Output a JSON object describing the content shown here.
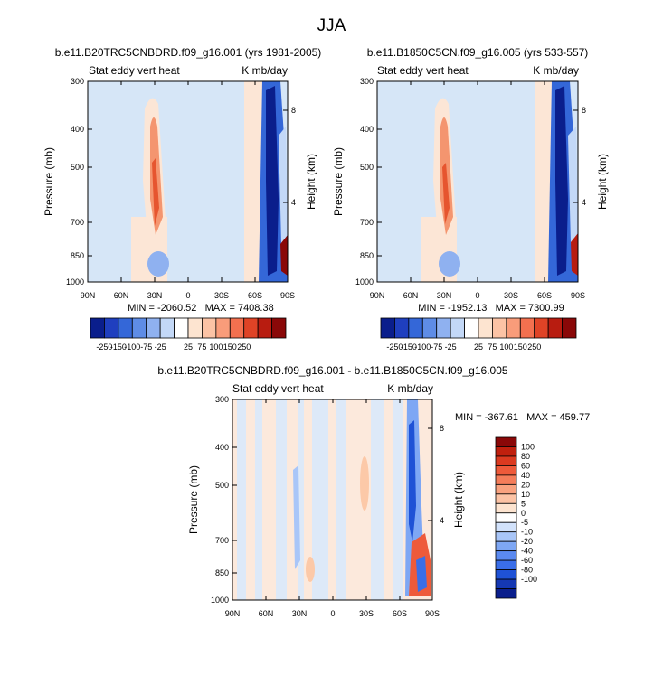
{
  "page_title": "JJA",
  "colors": {
    "bg_blue": "#d6e6f7",
    "bg_orange": "#fce6d6"
  },
  "main_palette": [
    "#0a1e8c",
    "#1f3fbf",
    "#3467d8",
    "#5e8ce6",
    "#8fb1f0",
    "#c3d8f7",
    "#ffffff",
    "#fde4d0",
    "#fcc3a5",
    "#f99c7a",
    "#f3704f",
    "#df4326",
    "#b81c10",
    "#8a0808"
  ],
  "diff_palette": [
    "#0a1e8c",
    "#1538b3",
    "#1f52d6",
    "#3a6ee8",
    "#5b8af0",
    "#7ea7f4",
    "#a9c6f8",
    "#d2e2fb",
    "#ffffff",
    "#fde4d0",
    "#fcc3a5",
    "#f9a27f",
    "#f57d5a",
    "#ee5a3a",
    "#db3a20",
    "#c0200e",
    "#8a0808"
  ],
  "chart_data": [
    {
      "type": "heatmap",
      "title": "b.e11.B20TRC5CNBDRD.f09_g16.001 (yrs 1981-2005)",
      "left_string": "Stat eddy vert heat",
      "right_string": "K mb/day",
      "ylabel": "Pressure (mb)",
      "ylabel_right": "Height (km)",
      "x_ticks": [
        "90N",
        "60N",
        "30N",
        "0",
        "30S",
        "60S",
        "90S"
      ],
      "y_ticks": [
        "300",
        "400",
        "500",
        "700",
        "850",
        "1000"
      ],
      "y_ticks_right": [
        "8",
        "4"
      ],
      "ylim": [
        1000,
        300
      ],
      "min_max": "MIN = -2060.52   MAX = 7408.38",
      "colorbar_levels": [
        "-250",
        "-150",
        "-100",
        "-75",
        "-25",
        "25",
        "75",
        "100",
        "150",
        "250"
      ]
    },
    {
      "type": "heatmap",
      "title": "b.e11.B1850C5CN.f09_g16.005 (yrs 533-557)",
      "left_string": "Stat eddy vert heat",
      "right_string": "K mb/day",
      "ylabel": "Pressure (mb)",
      "ylabel_right": "Height (km)",
      "x_ticks": [
        "90N",
        "60N",
        "30N",
        "0",
        "30S",
        "60S",
        "90S"
      ],
      "y_ticks": [
        "300",
        "400",
        "500",
        "700",
        "850",
        "1000"
      ],
      "y_ticks_right": [
        "8",
        "4"
      ],
      "ylim": [
        1000,
        300
      ],
      "min_max": "MIN = -1952.13   MAX = 7300.99",
      "colorbar_levels": [
        "-250",
        "-150",
        "-100",
        "-75",
        "-25",
        "25",
        "75",
        "100",
        "150",
        "250"
      ]
    },
    {
      "type": "heatmap",
      "title": "b.e11.B20TRC5CNBDRD.f09_g16.001 - b.e11.B1850C5CN.f09_g16.005",
      "left_string": "Stat eddy vert heat",
      "right_string": "K mb/day",
      "ylabel": "Pressure (mb)",
      "ylabel_right": "Height (km)",
      "x_ticks": [
        "90N",
        "60N",
        "30N",
        "0",
        "30S",
        "60S",
        "90S"
      ],
      "y_ticks": [
        "300",
        "400",
        "500",
        "700",
        "850",
        "1000"
      ],
      "y_ticks_right": [
        "8",
        "4"
      ],
      "ylim": [
        1000,
        300
      ],
      "min_max": "MIN = -367.61   MAX = 459.77",
      "colorbar_levels": [
        "100",
        "80",
        "60",
        "40",
        "20",
        "10",
        "5",
        "0",
        "-5",
        "-10",
        "-20",
        "-40",
        "-60",
        "-80",
        "-100"
      ]
    }
  ]
}
